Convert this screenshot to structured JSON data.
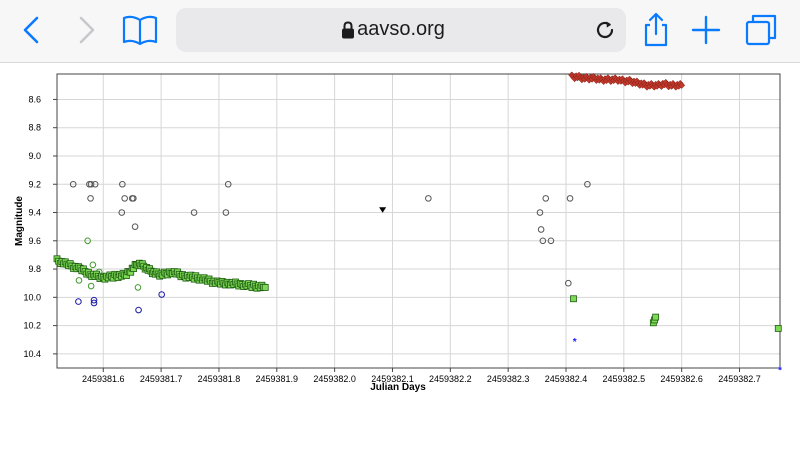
{
  "browser": {
    "url": "aavso.org",
    "icons": [
      "back-chevron-icon",
      "forward-chevron-icon",
      "bookmarks-book-icon",
      "lock-icon",
      "reload-icon",
      "share-icon",
      "new-tab-plus-icon",
      "tabs-icon"
    ],
    "accent": "#0a7aff"
  },
  "chart_data": {
    "type": "scatter",
    "xlabel": "Julian Days",
    "ylabel": "Magnitude",
    "xlim": [
      2459381.52,
      2459382.77
    ],
    "ylim": [
      10.5,
      8.42
    ],
    "y_inverted": true,
    "x_ticks": [
      "2459381.6",
      "2459381.7",
      "2459381.8",
      "2459381.9",
      "2459382.0",
      "2459382.1",
      "2459382.2",
      "2459382.3",
      "2459382.4",
      "2459382.5",
      "2459382.6",
      "2459382.7"
    ],
    "x_tick_values": [
      2459381.6,
      2459381.7,
      2459381.8,
      2459381.9,
      2459382.0,
      2459382.1,
      2459382.2,
      2459382.3,
      2459382.4,
      2459382.5,
      2459382.6,
      2459382.7
    ],
    "y_ticks": [
      "8.6",
      "8.8",
      "9.0",
      "9.2",
      "9.4",
      "9.6",
      "9.8",
      "10.0",
      "10.2",
      "10.4"
    ],
    "y_tick_values": [
      8.6,
      8.8,
      9.0,
      9.2,
      9.4,
      9.6,
      9.8,
      10.0,
      10.2,
      10.4
    ],
    "grid": true,
    "series": [
      {
        "marker": "open-circle",
        "color": "#555555",
        "x": [
          2459381.548,
          2459381.576,
          2459381.579,
          2459381.586,
          2459381.578,
          2459381.633,
          2459381.632,
          2459381.637,
          2459381.65,
          2459381.652,
          2459381.655,
          2459381.757,
          2459381.812,
          2459381.816,
          2459382.162,
          2459382.355,
          2459382.357,
          2459382.36,
          2459382.365,
          2459382.374,
          2459382.404,
          2459382.407,
          2459382.437
        ],
        "y": [
          9.2,
          9.2,
          9.2,
          9.2,
          9.3,
          9.2,
          9.4,
          9.3,
          9.3,
          9.3,
          9.5,
          9.4,
          9.4,
          9.2,
          9.3,
          9.4,
          9.52,
          9.6,
          9.3,
          9.6,
          9.9,
          9.3,
          9.2
        ]
      },
      {
        "marker": "filled-triangle-down",
        "color": "#000000",
        "x": [
          2459382.083
        ],
        "y": [
          9.38
        ]
      },
      {
        "marker": "open-circle",
        "color": "#1a1aa8",
        "x": [
          2459381.557,
          2459381.584,
          2459381.584,
          2459381.661,
          2459381.701
        ],
        "y": [
          10.03,
          10.02,
          10.04,
          10.09,
          9.98
        ]
      },
      {
        "marker": "open-circle",
        "color": "#3f9a2a",
        "x": [
          2459381.558,
          2459381.573,
          2459381.579,
          2459381.582,
          2459381.593,
          2459381.66
        ],
        "y": [
          9.88,
          9.6,
          9.92,
          9.77,
          9.82,
          9.93
        ]
      },
      {
        "marker": "asterisk",
        "color": "#1a1aff",
        "x": [
          2459382.415,
          2459382.77
        ],
        "y": [
          10.31,
          10.51
        ]
      },
      {
        "marker": "filled-square-green",
        "color": "#7ed957",
        "x": [
          2459381.52,
          2459381.54,
          2459381.56,
          2459381.58,
          2459381.6,
          2459381.62,
          2459381.64,
          2459381.65,
          2459381.66,
          2459381.67,
          2459381.68,
          2459381.69,
          2459381.7,
          2459381.72,
          2459381.74,
          2459381.76,
          2459381.78,
          2459381.8,
          2459381.82,
          2459381.84,
          2459381.86,
          2459381.88,
          2459382.413,
          2459382.551,
          2459382.553,
          2459382.555,
          2459382.767
        ],
        "y": [
          9.74,
          9.77,
          9.8,
          9.84,
          9.86,
          9.85,
          9.84,
          9.8,
          9.76,
          9.78,
          9.81,
          9.83,
          9.84,
          9.82,
          9.85,
          9.86,
          9.88,
          9.9,
          9.9,
          9.91,
          9.92,
          9.93,
          10.01,
          10.18,
          10.16,
          10.14,
          10.22
        ]
      },
      {
        "marker": "filled-diamond-red",
        "color": "#c0392b",
        "x": [
          2459382.41,
          2459382.42,
          2459382.43,
          2459382.44,
          2459382.45,
          2459382.46,
          2459382.47,
          2459382.48,
          2459382.49,
          2459382.5,
          2459382.51,
          2459382.52,
          2459382.53,
          2459382.54,
          2459382.55,
          2459382.56,
          2459382.57,
          2459382.58,
          2459382.59,
          2459382.6
        ],
        "y": [
          8.44,
          8.44,
          8.45,
          8.45,
          8.45,
          8.46,
          8.46,
          8.46,
          8.46,
          8.47,
          8.47,
          8.48,
          8.49,
          8.5,
          8.5,
          8.5,
          8.49,
          8.5,
          8.5,
          8.5
        ]
      }
    ]
  }
}
